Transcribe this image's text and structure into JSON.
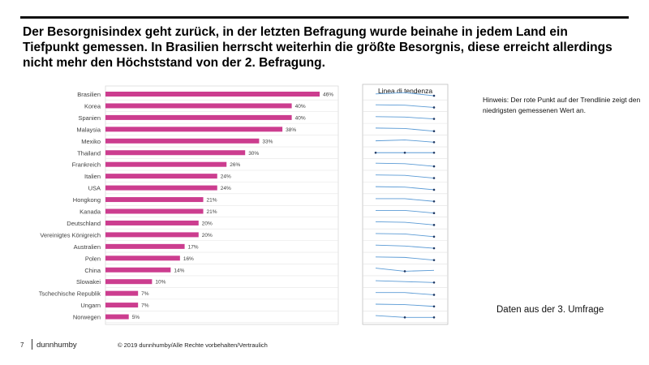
{
  "headline": "Der Besorgnisindex geht zurück, in der letzten Befragung wurde beinahe in jedem Land ein Tiefpunkt gemessen. In Brasilien herrscht weiterhin die größte Besorgnis, diese erreicht allerdings nicht mehr den Höchststand  von der 2. Befragung.",
  "hint": "Hinweis: Der rote Punkt auf der Trendlinie zeigt den niedrigsten gemessenen Wert an.",
  "source_note": "Daten aus der 3. Umfrage",
  "footer": {
    "page_number": "7",
    "brand": "dunnhumby",
    "copyright": "© 2019 dunnhumby/Alle Rechte vorbehalten/Vertraulich"
  },
  "colors": {
    "bar": "#cc3d8f",
    "trend_line": "#5b9bd5",
    "trend_marker": "#1f3864"
  },
  "chart_data": [
    {
      "type": "bar",
      "orientation": "horizontal",
      "categories": [
        "Brasilien",
        "Korea",
        "Spanien",
        "Malaysia",
        "Mexiko",
        "Thailand",
        "Frankreich",
        "Italien",
        "USA",
        "Hongkong",
        "Kanada",
        "Deutschland",
        "Vereinigtes Königreich",
        "Australien",
        "Polen",
        "China",
        "Slowakei",
        "Tschechische Republik",
        "Ungarn",
        "Norwegen"
      ],
      "values": [
        46,
        40,
        40,
        38,
        33,
        30,
        26,
        24,
        24,
        21,
        21,
        20,
        20,
        17,
        16,
        14,
        10,
        7,
        7,
        5
      ],
      "labels": [
        "46%",
        "40%",
        "40%",
        "38%",
        "33%",
        "30%",
        "26%",
        "24%",
        "24%",
        "21%",
        "21%",
        "20%",
        "20%",
        "17%",
        "16%",
        "14%",
        "10%",
        "7%",
        "7%",
        "5%"
      ],
      "unit": "%",
      "xlim": [
        0,
        50
      ],
      "grid": true
    },
    {
      "type": "line",
      "title": "Linea di tendenza",
      "x": [
        1,
        2,
        3
      ],
      "ylim": [
        0,
        60
      ],
      "lowest_marker": true,
      "series": [
        {
          "name": "Brasilien",
          "values": [
            50,
            53,
            46
          ]
        },
        {
          "name": "Korea",
          "values": [
            46,
            45,
            40
          ]
        },
        {
          "name": "Spanien",
          "values": [
            45,
            44,
            40
          ]
        },
        {
          "name": "Malaysia",
          "values": [
            45,
            44,
            38
          ]
        },
        {
          "name": "Mexiko",
          "values": [
            36,
            38,
            33
          ]
        },
        {
          "name": "Thailand",
          "values": [
            30,
            30,
            30
          ]
        },
        {
          "name": "Frankreich",
          "values": [
            33,
            32,
            26
          ]
        },
        {
          "name": "Italien",
          "values": [
            31,
            30,
            24
          ]
        },
        {
          "name": "USA",
          "values": [
            31,
            30,
            24
          ]
        },
        {
          "name": "Hongkong",
          "values": [
            27,
            27,
            21
          ]
        },
        {
          "name": "Kanada",
          "values": [
            27,
            27,
            21
          ]
        },
        {
          "name": "Deutschland",
          "values": [
            27,
            26,
            20
          ]
        },
        {
          "name": "Vereinigtes Königreich",
          "values": [
            27,
            26,
            20
          ]
        },
        {
          "name": "Australien",
          "values": [
            24,
            22,
            17
          ]
        },
        {
          "name": "Polen",
          "values": [
            23,
            22,
            16
          ]
        },
        {
          "name": "China",
          "values": [
            19,
            12,
            14
          ]
        },
        {
          "name": "Slowakei",
          "values": [
            14,
            12,
            10
          ]
        },
        {
          "name": "Tschechische Republik",
          "values": [
            12,
            12,
            7
          ]
        },
        {
          "name": "Ungarn",
          "values": [
            12,
            11,
            7
          ]
        },
        {
          "name": "Norwegen",
          "values": [
            9,
            5,
            5
          ]
        }
      ]
    }
  ]
}
